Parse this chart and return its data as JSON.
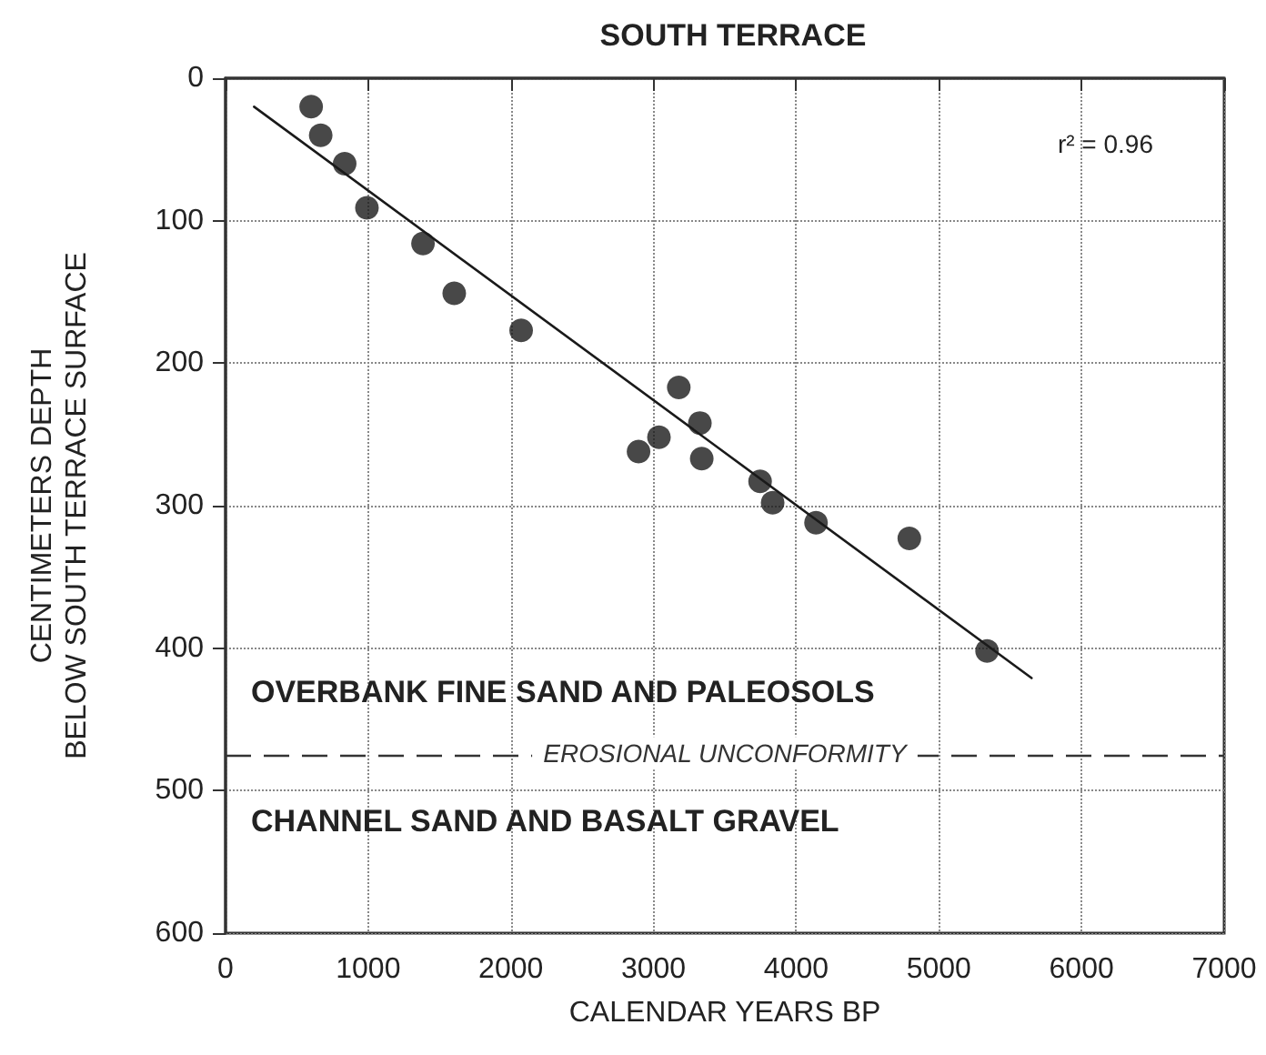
{
  "chart_data": {
    "type": "scatter",
    "title": "SOUTH TERRACE",
    "xlabel": "CALENDAR YEARS BP",
    "ylabel": "CENTIMETERS DEPTH\nBELOW SOUTH TERRACE SURFACE",
    "annotations": [
      "r² = 0.96",
      "OVERBANK FINE SAND AND PALEOSOLS",
      "CHANNEL SAND AND BASALT GRAVEL"
    ],
    "series": [
      {
        "color": "#1a1a1a",
        "marker": "circle",
        "x": [
          600,
          667,
          835,
          991,
          1384,
          1603,
          2072,
          3177,
          3325,
          3038,
          2895,
          3338,
          3747,
          3835,
          4139,
          4793,
          5338
        ],
        "values": [
          20,
          40,
          60,
          91,
          116,
          151,
          177,
          217,
          242,
          252,
          262,
          267,
          283,
          298,
          312,
          323,
          402
        ]
      },
      {
        "type": "line",
        "color": "#1a1a1a",
        "marker": "none",
        "line_style": "solid",
        "x": [
          200,
          5650
        ],
        "values": [
          20,
          421
        ]
      }
    ],
    "xlim": [
      0,
      7000
    ],
    "xticks": [
      0,
      1000,
      2000,
      3000,
      4000,
      5000,
      6000,
      7000
    ],
    "ylim": [
      600,
      0
    ],
    "yticks": [
      0,
      100,
      200,
      300,
      400,
      500,
      600
    ],
    "ref_lines": [
      {
        "axis": "y",
        "value": 475,
        "label": "EROSIONAL UNCONFORMITY",
        "line_style": "dashed",
        "color": "#333333"
      }
    ],
    "grid": true
  }
}
